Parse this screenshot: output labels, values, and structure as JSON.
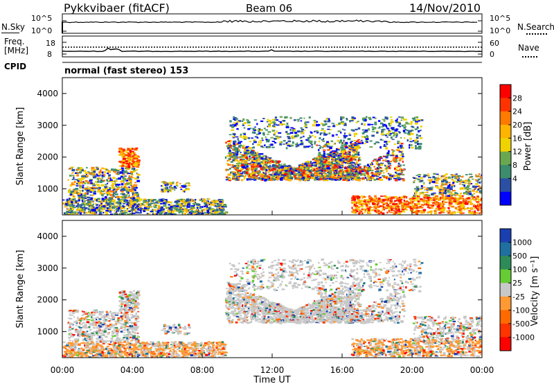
{
  "header": {
    "station": "Pykkvibaer (fitACF)",
    "beam": "Beam 06",
    "date": "14/Nov/2010"
  },
  "panels": {
    "nsky_label": "N.Sky",
    "nsky_ticks": [
      "10^5",
      "10^0"
    ],
    "nsearch_label": "N.Search",
    "nsearch_ticks": [
      "10^5",
      "10^0"
    ],
    "freq_label": "Freq.",
    "freq_unit": "[MHz]",
    "freq_ticks": [
      "18",
      "8"
    ],
    "nave_label": "Nave",
    "nave_ticks": [
      "60",
      "0"
    ],
    "cpid_label": "CPID",
    "cpid_text": "normal (fast stereo) 153"
  },
  "chart_data": [
    {
      "type": "heatmap",
      "name": "Power",
      "ylabel": "Slant Range [km]",
      "colorbar_label": "Power [dB]",
      "colorbar_ticks": [
        "28",
        "24",
        "20",
        "16",
        "12",
        "8",
        "4"
      ],
      "colorbar_colors": [
        "#ff0000",
        "#ff3300",
        "#ff7a00",
        "#ffb400",
        "#f0d200",
        "#6aa84f",
        "#3c8c6e",
        "#2b4fa3",
        "#0000ff"
      ],
      "yticks": [
        "4000",
        "3000",
        "2000",
        "1000"
      ],
      "ylim": [
        180,
        4500
      ],
      "xlim": [
        "00:00",
        "24:00"
      ]
    },
    {
      "type": "heatmap",
      "name": "Velocity",
      "ylabel": "Slant Range [km]",
      "colorbar_label": "Velocity [m s⁻¹]",
      "colorbar_ticks": [
        "1000",
        "500",
        "100",
        "25",
        "-25",
        "-100",
        "-500",
        "-1000"
      ],
      "colorbar_colors": [
        "#1a3fb0",
        "#1f6fa0",
        "#2e8b57",
        "#66cc33",
        "#c8c8c8",
        "#ff9933",
        "#ff6a00",
        "#ff3300",
        "#ff0000"
      ],
      "yticks": [
        "4000",
        "3000",
        "2000",
        "1000"
      ],
      "ylim": [
        180,
        4500
      ],
      "xlim": [
        "00:00",
        "24:00"
      ]
    }
  ],
  "xaxis": {
    "label": "Time UT",
    "ticks": [
      "00:00",
      "04:00",
      "08:00",
      "12:00",
      "16:00",
      "20:00",
      "00:00"
    ]
  }
}
